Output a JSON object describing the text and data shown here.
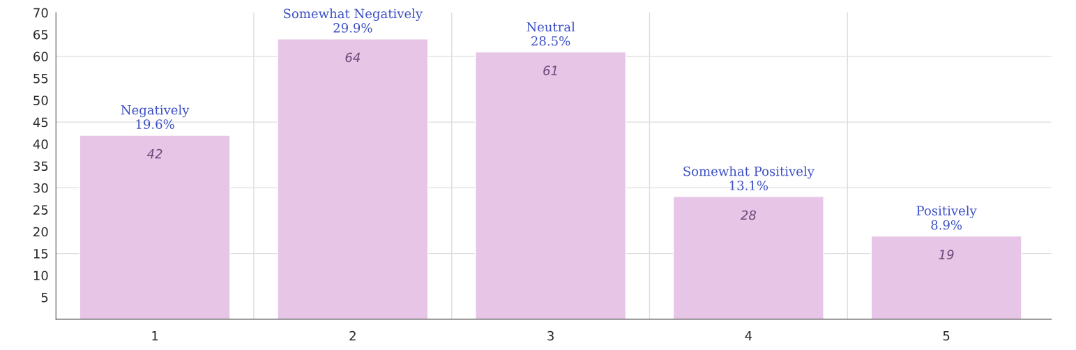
{
  "chart_data": {
    "type": "bar",
    "categories": [
      "1",
      "2",
      "3",
      "4",
      "5"
    ],
    "values": [
      42,
      64,
      61,
      28,
      19
    ],
    "color": "#e6c5e6",
    "data_labels": true,
    "ylim": [
      0,
      70
    ],
    "yticks": [
      5,
      10,
      15,
      20,
      25,
      30,
      35,
      40,
      45,
      50,
      55,
      60,
      65,
      70
    ],
    "grid": true,
    "annotations": [
      {
        "text": "Negatively\n19.6%",
        "x": "1",
        "y": 42
      },
      {
        "text": "Somewhat Negatively\n29.9%",
        "x": "2",
        "y": 64
      },
      {
        "text": "Neutral\n28.5%",
        "x": "3",
        "y": 61
      },
      {
        "text": "Somewhat Positively\n13.1%",
        "x": "4",
        "y": 28
      },
      {
        "text": "Positively\n8.9%",
        "x": "5",
        "y": 19
      }
    ]
  }
}
